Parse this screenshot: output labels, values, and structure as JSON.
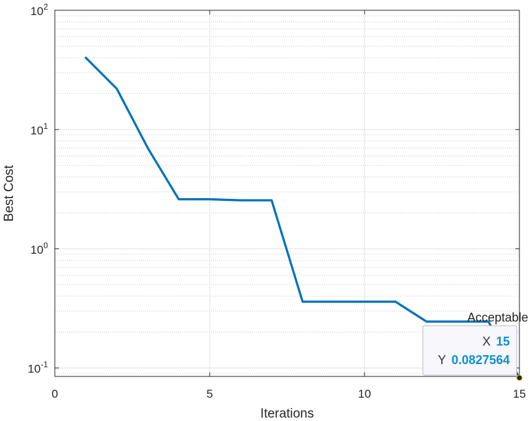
{
  "chart_data": {
    "type": "line",
    "xlabel": "Iterations",
    "ylabel": "Best Cost",
    "xlim": [
      0,
      15
    ],
    "ylim": [
      0.085,
      100
    ],
    "yscale": "log",
    "grid": true,
    "minor_grid": true,
    "x_ticks": [
      0,
      5,
      10,
      15
    ],
    "x_tick_labels": [
      "0",
      "5",
      "10",
      "15"
    ],
    "y_ticks": [
      0.1,
      1,
      10,
      100
    ],
    "y_tick_labels": [
      {
        "base": "10",
        "exp": "-1"
      },
      {
        "base": "10",
        "exp": "0"
      },
      {
        "base": "10",
        "exp": "1"
      },
      {
        "base": "10",
        "exp": "2"
      }
    ],
    "series": [
      {
        "color": "#0072bd",
        "x": [
          1,
          2,
          3,
          4,
          5,
          6,
          7,
          8,
          9,
          10,
          11,
          12,
          13,
          14,
          15
        ],
        "y": [
          40,
          22,
          7,
          2.6,
          2.6,
          2.55,
          2.55,
          0.36,
          0.36,
          0.36,
          0.36,
          0.245,
          0.245,
          0.245,
          0.0827564
        ]
      }
    ],
    "annotation": {
      "text": "Acceptable",
      "x": 14.3,
      "y": 0.245
    },
    "datatip": {
      "x_key": "X",
      "x_value": "15",
      "y_key": "Y",
      "y_value": "0.0827564",
      "point": {
        "x": 15,
        "y": 0.0827564
      }
    }
  }
}
